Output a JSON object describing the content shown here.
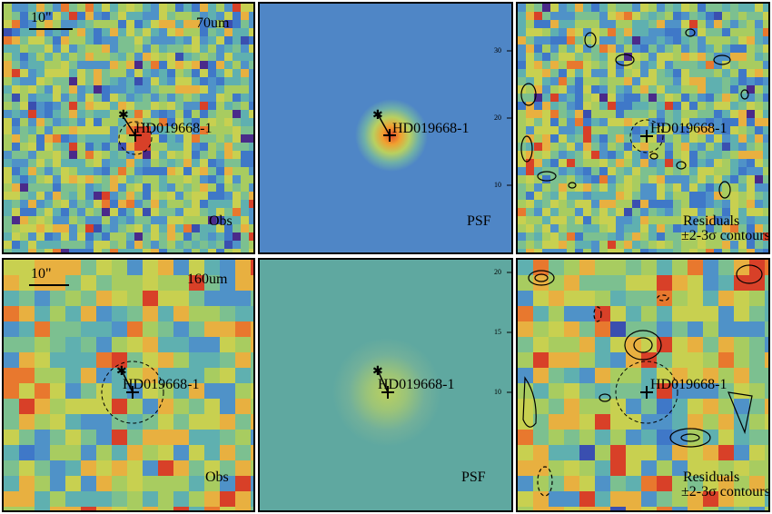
{
  "source_name": "HD019668-1",
  "rows": [
    {
      "band": "70um",
      "scale_label": "10\"",
      "panels": [
        {
          "name": "obs",
          "label": "Obs"
        },
        {
          "name": "psf",
          "label": "PSF"
        },
        {
          "name": "residuals",
          "label": "Residuals",
          "sublabel": "±2-3σ contours"
        }
      ]
    },
    {
      "band": "160um",
      "scale_label": "10\"",
      "panels": [
        {
          "name": "obs",
          "label": "Obs"
        },
        {
          "name": "psf",
          "label": "PSF"
        },
        {
          "name": "residuals",
          "label": "Residuals",
          "sublabel": "±2-3σ contours"
        }
      ]
    }
  ],
  "psf_axis_ticks_row1": [
    "30",
    "20",
    "10"
  ],
  "psf_axis_ticks_row2": [
    "20",
    "15",
    "10"
  ],
  "colors": {
    "psf_bg_70": "#4f86c6",
    "psf_bg_160": "#5fa8a0",
    "peak": "#e8562a",
    "frame": "#000000"
  }
}
